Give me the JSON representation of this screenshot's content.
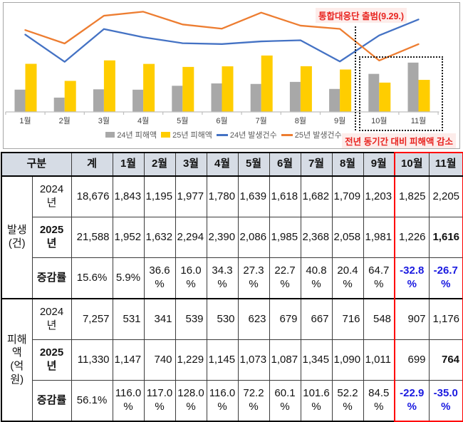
{
  "chart": {
    "annotation": "통합대응단 출범(9.29.)",
    "callout": "전년 동기간 대비 피해액 감소",
    "red_text_color": "#e8231f",
    "red_text_bg": "#fdecea",
    "highlight_months": [
      "10월",
      "11월"
    ]
  },
  "chart_data": {
    "type": "bar+line combo",
    "categories": [
      "1월",
      "2월",
      "3월",
      "4월",
      "5월",
      "6월",
      "7월",
      "8월",
      "9월",
      "10월",
      "11월"
    ],
    "series": [
      {
        "name": "24년 피해액",
        "type": "bar",
        "color": "#a8a8a8",
        "values": [
          531,
          341,
          539,
          530,
          623,
          679,
          667,
          716,
          548,
          907,
          1176
        ]
      },
      {
        "name": "25년 피해액",
        "type": "bar",
        "color": "#ffcd00",
        "values": [
          1147,
          740,
          1229,
          1145,
          1073,
          1087,
          1345,
          1090,
          1011,
          699,
          764
        ]
      },
      {
        "name": "24년 발생건수",
        "type": "line",
        "color": "#4472c4",
        "values": [
          1843,
          1195,
          1977,
          1780,
          1639,
          1618,
          1682,
          1709,
          1203,
          1825,
          2205
        ]
      },
      {
        "name": "25년 발생건수",
        "type": "line",
        "color": "#ed7d31",
        "values": [
          1952,
          1632,
          2294,
          2390,
          2086,
          1985,
          2368,
          2058,
          1981,
          1226,
          1616
        ]
      }
    ],
    "title": "",
    "xlabel": "",
    "ylabel": "",
    "ylim": [
      0,
      2600
    ],
    "grid": false,
    "legend_position": "bottom",
    "axis_color": "#bfbfbf",
    "tick_label_color": "#3f3f3f"
  },
  "table": {
    "corner_label": "구분",
    "columns": [
      "계",
      "1월",
      "2월",
      "3월",
      "4월",
      "5월",
      "6월",
      "7월",
      "8월",
      "9월",
      "10월",
      "11월"
    ],
    "highlight_cols": [
      10,
      11
    ],
    "header_bg": "#d6dce5",
    "negative_color": "#1a1ae0",
    "groups": [
      {
        "label": "발생(건)",
        "rows": [
          {
            "label": "2024년",
            "bold": false,
            "bold_cols": [],
            "values": [
              "18,676",
              "1,843",
              "1,195",
              "1,977",
              "1,780",
              "1,639",
              "1,618",
              "1,682",
              "1,709",
              "1,203",
              "1,825",
              "2,205"
            ]
          },
          {
            "label": "2025년",
            "bold": true,
            "bold_cols": [
              11
            ],
            "values": [
              "21,588",
              "1,952",
              "1,632",
              "2,294",
              "2,390",
              "2,086",
              "1,985",
              "2,368",
              "2,058",
              "1,981",
              "1,226",
              "1,616"
            ]
          },
          {
            "label": "증감률",
            "bold": true,
            "bold_cols": [],
            "values": [
              "15.6%",
              "5.9%",
              "36.6%",
              "16.0%",
              "34.3%",
              "27.3%",
              "22.7%",
              "40.8%",
              "20.4%",
              "64.7%",
              "-32.8%",
              "-26.7%"
            ]
          }
        ]
      },
      {
        "label": "피해액(억원)",
        "rows": [
          {
            "label": "2024년",
            "bold": false,
            "bold_cols": [],
            "values": [
              "7,257",
              "531",
              "341",
              "539",
              "530",
              "623",
              "679",
              "667",
              "716",
              "548",
              "907",
              "1,176"
            ]
          },
          {
            "label": "2025년",
            "bold": true,
            "bold_cols": [
              11
            ],
            "values": [
              "11,330",
              "1,147",
              "740",
              "1,229",
              "1,145",
              "1,073",
              "1,087",
              "1,345",
              "1,090",
              "1,011",
              "699",
              "764"
            ]
          },
          {
            "label": "증감률",
            "bold": true,
            "bold_cols": [],
            "values": [
              "56.1%",
              "116.0%",
              "117.0%",
              "128.0%",
              "116.0%",
              "72.2%",
              "60.1%",
              "101.6%",
              "52.2%",
              "84.5%",
              "-22.9%",
              "-35.0%"
            ]
          }
        ]
      }
    ]
  }
}
